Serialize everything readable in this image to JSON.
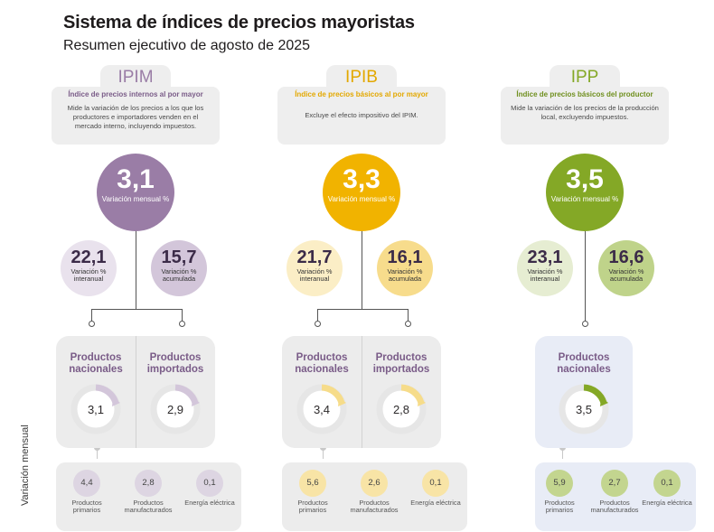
{
  "header": {
    "title": "Sistema de índices de precios mayoristas",
    "subtitle": "Resumen ejecutivo de agosto de 2025"
  },
  "side_label": "Variación mensual",
  "colors": {
    "ipim": "#9a7da6",
    "ipib": "#f1b300",
    "ipp": "#84a826"
  },
  "indices": [
    {
      "tab": "IPIM",
      "name": "Índice de precios internos al por mayor",
      "description": "Mide la variación de los precios a los que los productores e importadores venden en el mercado interno, incluyendo impuestos.",
      "main_value": "3,1",
      "main_label": "Variación mensual %",
      "interannual_value": "22,1",
      "interannual_label": "Variación % interanual",
      "accumulated_value": "15,7",
      "accumulated_label": "Variación % acumulada",
      "products": [
        {
          "name": "Productos nacionales",
          "value": "3,1"
        },
        {
          "name": "Productos importados",
          "value": "2,9"
        }
      ],
      "breakdown": [
        {
          "label": "Productos primarios",
          "value": "4,4"
        },
        {
          "label": "Productos manufacturados",
          "value": "2,8"
        },
        {
          "label": "Energía eléctrica",
          "value": "0,1"
        }
      ]
    },
    {
      "tab": "IPIB",
      "name": "Índice de precios básicos al por mayor",
      "description": "Excluye el efecto impositivo del IPIM.",
      "main_value": "3,3",
      "main_label": "Variación mensual %",
      "interannual_value": "21,7",
      "interannual_label": "Variación % interanual",
      "accumulated_value": "16,1",
      "accumulated_label": "Variación % acumulada",
      "products": [
        {
          "name": "Productos nacionales",
          "value": "3,4"
        },
        {
          "name": "Productos importados",
          "value": "2,8"
        }
      ],
      "breakdown": [
        {
          "label": "Productos primarios",
          "value": "5,6"
        },
        {
          "label": "Productos manufacturados",
          "value": "2,6"
        },
        {
          "label": "Energía eléctrica",
          "value": "0,1"
        }
      ]
    },
    {
      "tab": "IPP",
      "name": "Índice de precios básicos del productor",
      "description": "Mide la variación de los precios de la producción local, excluyendo impuestos.",
      "main_value": "3,5",
      "main_label": "Variación mensual %",
      "interannual_value": "23,1",
      "interannual_label": "Variación % interanual",
      "accumulated_value": "16,6",
      "accumulated_label": "Variación % acumulada",
      "products": [
        {
          "name": "Productos nacionales",
          "value": "3,5"
        }
      ],
      "breakdown": [
        {
          "label": "Productos primarios",
          "value": "5,9"
        },
        {
          "label": "Productos manufacturados",
          "value": "2,7"
        },
        {
          "label": "Energía eléctrica",
          "value": "0,1"
        }
      ]
    }
  ]
}
